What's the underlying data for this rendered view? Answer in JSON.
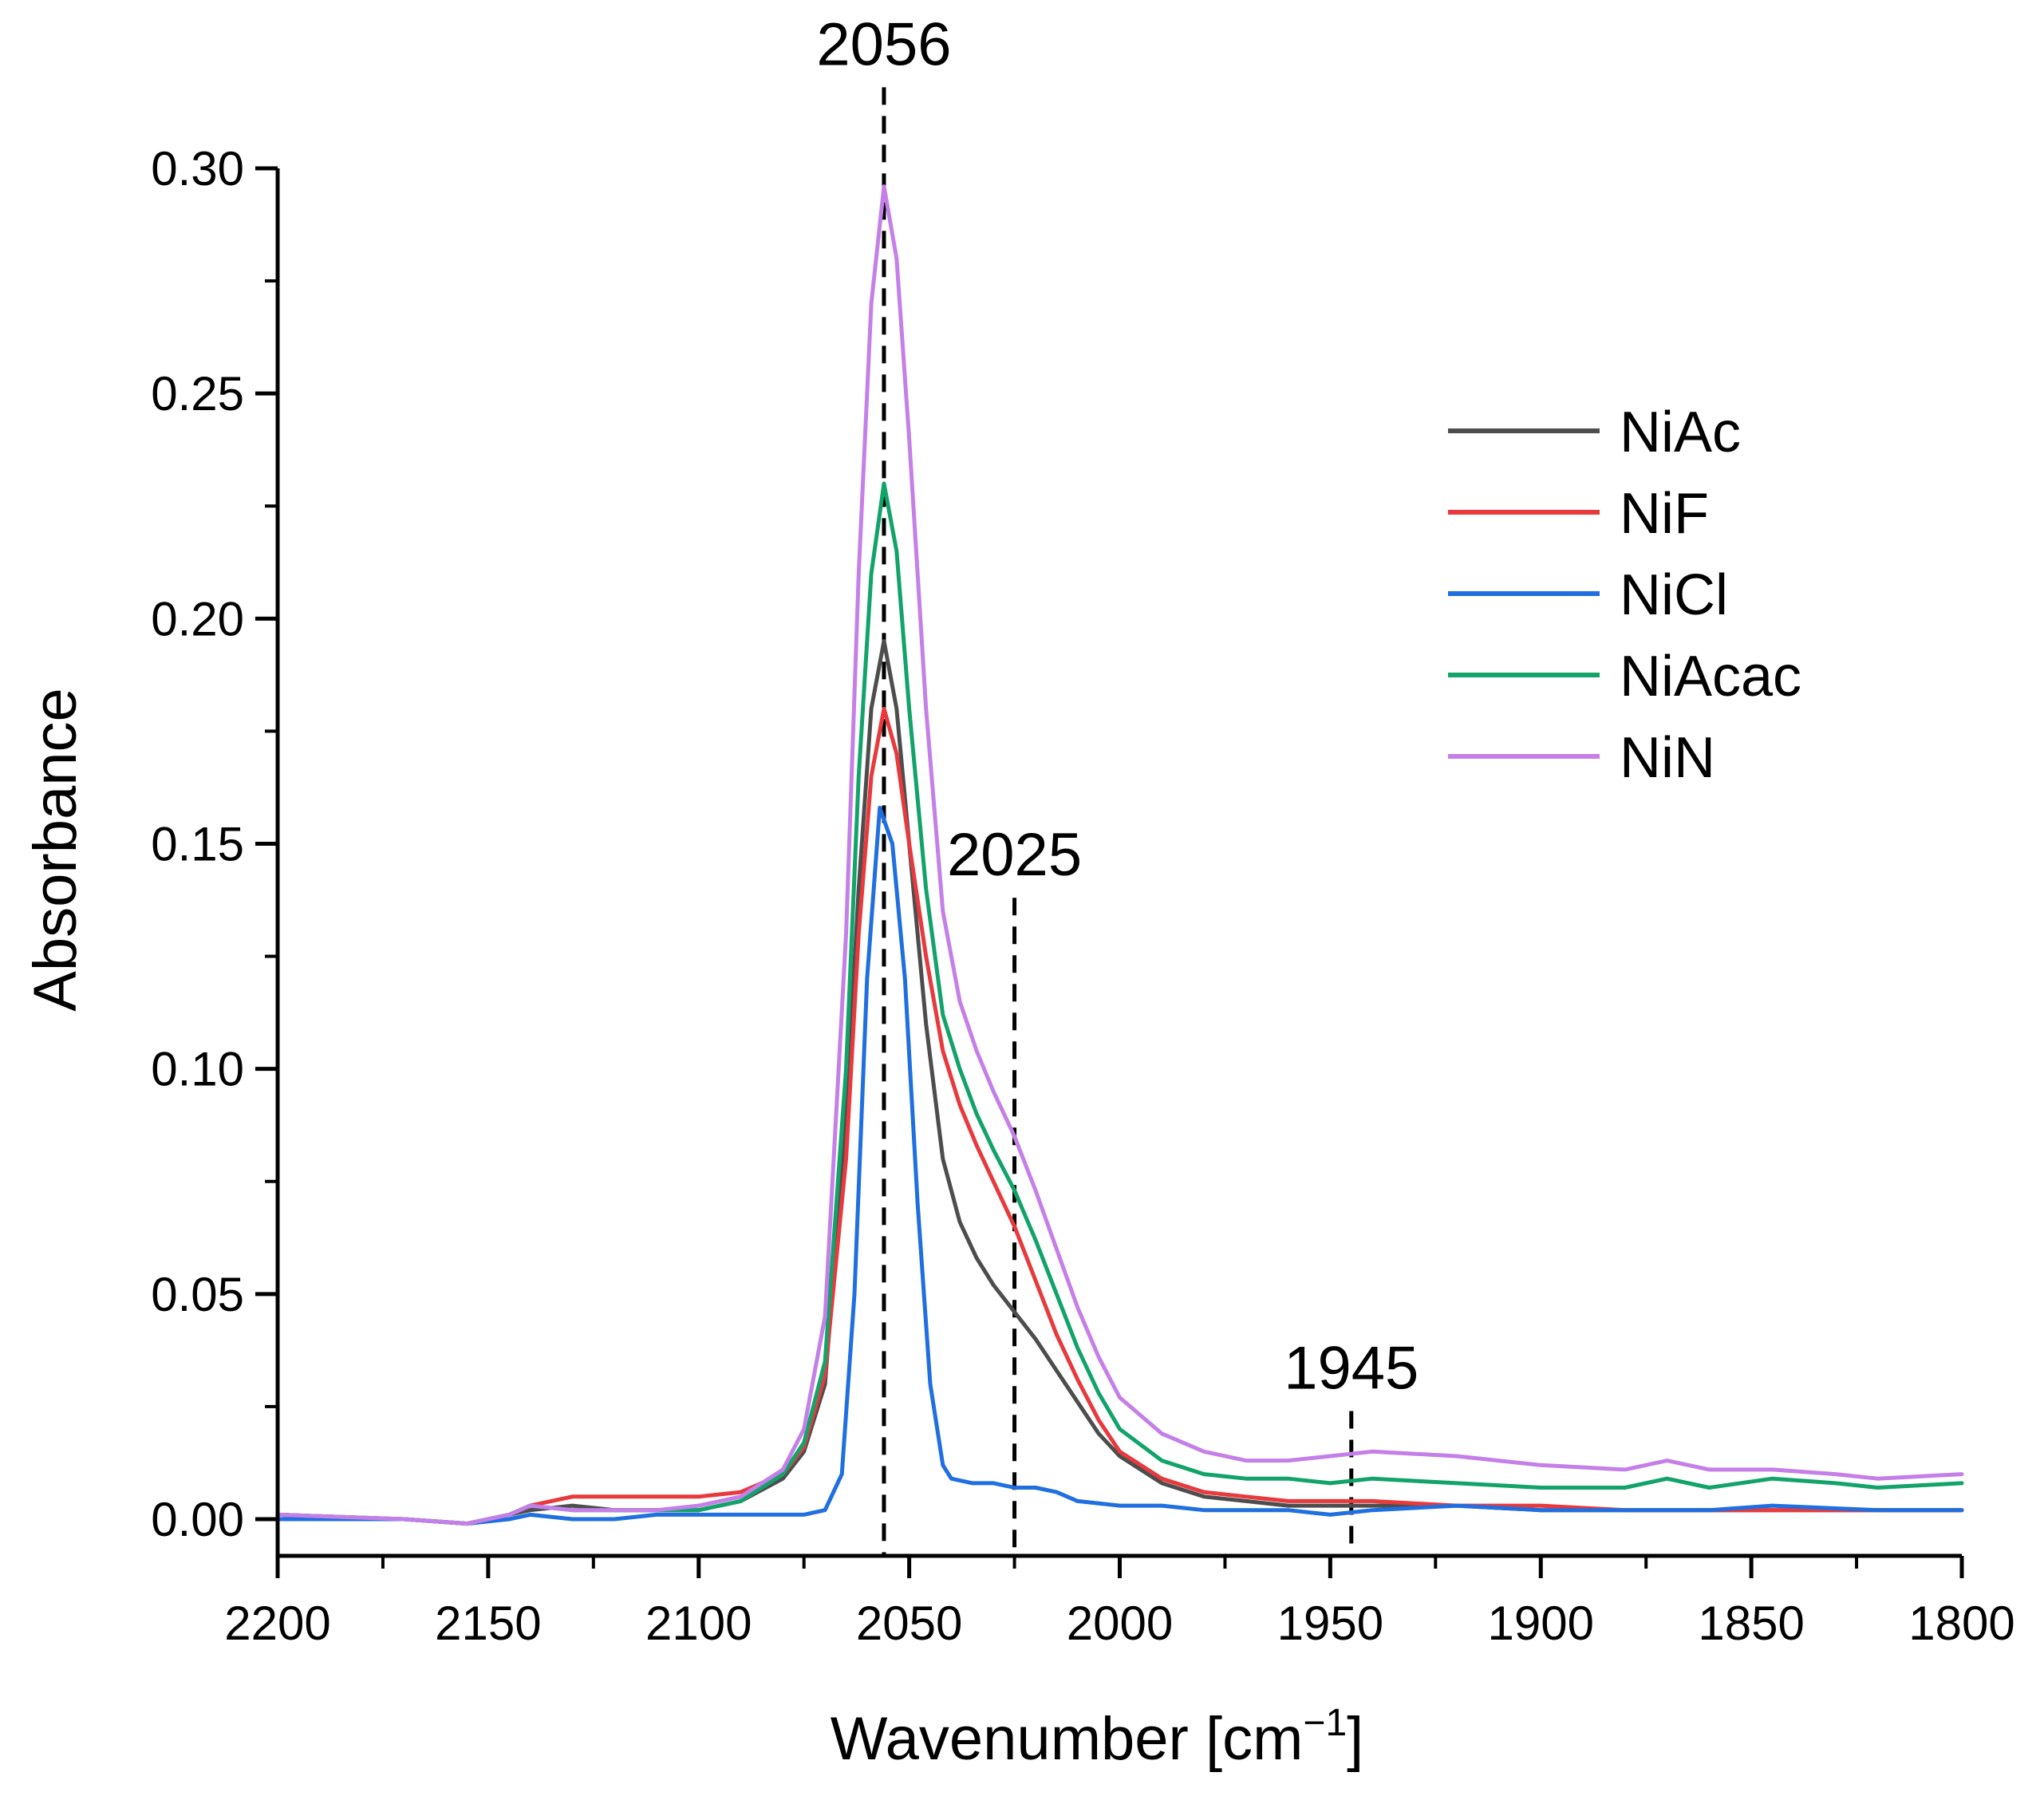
{
  "chart_data": {
    "type": "line",
    "title": "",
    "xlabel": "Wavenumber [cm",
    "xlabel_sup": "−1",
    "xlabel_close": "]",
    "ylabel": "Absorbance",
    "xlim": [
      2200,
      1800
    ],
    "ylim": [
      -0.008,
      0.3
    ],
    "xticks": [
      2200,
      2150,
      2100,
      2050,
      2000,
      1950,
      1900,
      1850,
      1800
    ],
    "xtick_labels": [
      "2200",
      "2150",
      "2100",
      "2050",
      "2000",
      "1950",
      "1900",
      "1850",
      "1800"
    ],
    "yticks": [
      0.0,
      0.05,
      0.1,
      0.15,
      0.2,
      0.25,
      0.3
    ],
    "ytick_labels": [
      "0.00",
      "0.05",
      "0.10",
      "0.15",
      "0.20",
      "0.25",
      "0.30"
    ],
    "grid": false,
    "legend_position": "top-right",
    "annotations": [
      {
        "label": "2056",
        "x": 2056,
        "y_top": 0.318
      },
      {
        "label": "2025",
        "x": 2025,
        "y_top": 0.138
      },
      {
        "label": "1945",
        "x": 1945,
        "y_top": 0.024
      }
    ],
    "series": [
      {
        "name": "NiAc",
        "color": "#4d4d4d",
        "x": [
          2200,
          2170,
          2155,
          2145,
          2140,
          2130,
          2120,
          2110,
          2100,
          2090,
          2080,
          2075,
          2070,
          2065,
          2062,
          2059,
          2056,
          2053,
          2050,
          2046,
          2042,
          2038,
          2034,
          2030,
          2025,
          2020,
          2015,
          2010,
          2005,
          2000,
          1990,
          1980,
          1970,
          1960,
          1950,
          1940,
          1920,
          1900,
          1880,
          1860,
          1840,
          1820,
          1800
        ],
        "y": [
          0.001,
          0.0,
          -0.001,
          0.001,
          0.002,
          0.003,
          0.002,
          0.002,
          0.002,
          0.004,
          0.009,
          0.015,
          0.03,
          0.09,
          0.14,
          0.18,
          0.195,
          0.18,
          0.15,
          0.11,
          0.08,
          0.066,
          0.058,
          0.052,
          0.046,
          0.04,
          0.033,
          0.026,
          0.019,
          0.014,
          0.008,
          0.005,
          0.004,
          0.003,
          0.003,
          0.003,
          0.003,
          0.002,
          0.002,
          0.002,
          0.002,
          0.002,
          0.002
        ]
      },
      {
        "name": "NiF",
        "color": "#e8393d",
        "x": [
          2200,
          2170,
          2155,
          2145,
          2140,
          2130,
          2120,
          2110,
          2100,
          2090,
          2080,
          2075,
          2070,
          2065,
          2062,
          2059,
          2056,
          2053,
          2050,
          2046,
          2042,
          2038,
          2034,
          2030,
          2025,
          2020,
          2015,
          2010,
          2005,
          2000,
          1990,
          1980,
          1970,
          1960,
          1950,
          1940,
          1920,
          1900,
          1880,
          1860,
          1840,
          1820,
          1800
        ],
        "y": [
          0.0,
          0.0,
          -0.001,
          0.001,
          0.003,
          0.005,
          0.005,
          0.005,
          0.005,
          0.006,
          0.01,
          0.016,
          0.032,
          0.08,
          0.13,
          0.165,
          0.18,
          0.17,
          0.15,
          0.125,
          0.104,
          0.092,
          0.083,
          0.075,
          0.065,
          0.053,
          0.041,
          0.031,
          0.022,
          0.015,
          0.009,
          0.006,
          0.005,
          0.004,
          0.004,
          0.004,
          0.003,
          0.003,
          0.002,
          0.002,
          0.002,
          0.002,
          0.002
        ]
      },
      {
        "name": "NiCl",
        "color": "#1f6fe0",
        "x": [
          2200,
          2170,
          2155,
          2145,
          2140,
          2130,
          2120,
          2110,
          2100,
          2090,
          2080,
          2075,
          2070,
          2066,
          2063,
          2060,
          2057,
          2054,
          2051,
          2048,
          2045,
          2042,
          2040,
          2035,
          2030,
          2025,
          2020,
          2015,
          2010,
          2000,
          1990,
          1980,
          1970,
          1960,
          1950,
          1940,
          1920,
          1900,
          1880,
          1860,
          1845,
          1820,
          1800
        ],
        "y": [
          0.0,
          0.0,
          -0.001,
          0.0,
          0.001,
          0.0,
          0.0,
          0.001,
          0.001,
          0.001,
          0.001,
          0.001,
          0.002,
          0.01,
          0.05,
          0.12,
          0.158,
          0.15,
          0.12,
          0.07,
          0.03,
          0.012,
          0.009,
          0.008,
          0.008,
          0.007,
          0.007,
          0.006,
          0.004,
          0.003,
          0.003,
          0.002,
          0.002,
          0.002,
          0.001,
          0.002,
          0.003,
          0.002,
          0.002,
          0.002,
          0.003,
          0.002,
          0.002
        ]
      },
      {
        "name": "NiAcac",
        "color": "#12a36b",
        "x": [
          2200,
          2170,
          2155,
          2145,
          2140,
          2130,
          2120,
          2110,
          2100,
          2090,
          2080,
          2075,
          2070,
          2065,
          2062,
          2059,
          2056,
          2053,
          2050,
          2046,
          2042,
          2038,
          2034,
          2030,
          2025,
          2020,
          2015,
          2010,
          2005,
          2000,
          1990,
          1980,
          1970,
          1960,
          1950,
          1940,
          1920,
          1900,
          1880,
          1870,
          1860,
          1845,
          1830,
          1820,
          1800
        ],
        "y": [
          0.001,
          0.0,
          -0.001,
          0.001,
          0.003,
          0.002,
          0.002,
          0.002,
          0.002,
          0.004,
          0.01,
          0.017,
          0.035,
          0.1,
          0.165,
          0.21,
          0.23,
          0.215,
          0.18,
          0.14,
          0.112,
          0.1,
          0.09,
          0.082,
          0.073,
          0.062,
          0.05,
          0.038,
          0.028,
          0.02,
          0.013,
          0.01,
          0.009,
          0.009,
          0.008,
          0.009,
          0.008,
          0.007,
          0.007,
          0.009,
          0.007,
          0.009,
          0.008,
          0.007,
          0.008
        ]
      },
      {
        "name": "NiN",
        "color": "#c57fe8",
        "x": [
          2200,
          2170,
          2155,
          2145,
          2140,
          2130,
          2120,
          2110,
          2100,
          2090,
          2080,
          2075,
          2070,
          2065,
          2062,
          2059,
          2056,
          2053,
          2050,
          2046,
          2042,
          2038,
          2034,
          2030,
          2025,
          2020,
          2015,
          2010,
          2005,
          2000,
          1990,
          1980,
          1970,
          1960,
          1950,
          1940,
          1920,
          1900,
          1880,
          1870,
          1860,
          1845,
          1830,
          1820,
          1800
        ],
        "y": [
          0.001,
          0.0,
          -0.001,
          0.001,
          0.003,
          0.002,
          0.002,
          0.002,
          0.003,
          0.005,
          0.011,
          0.02,
          0.045,
          0.13,
          0.21,
          0.27,
          0.296,
          0.28,
          0.24,
          0.18,
          0.135,
          0.115,
          0.104,
          0.095,
          0.085,
          0.073,
          0.06,
          0.047,
          0.036,
          0.027,
          0.019,
          0.015,
          0.013,
          0.013,
          0.014,
          0.015,
          0.014,
          0.012,
          0.011,
          0.013,
          0.011,
          0.011,
          0.01,
          0.009,
          0.01
        ]
      }
    ]
  }
}
